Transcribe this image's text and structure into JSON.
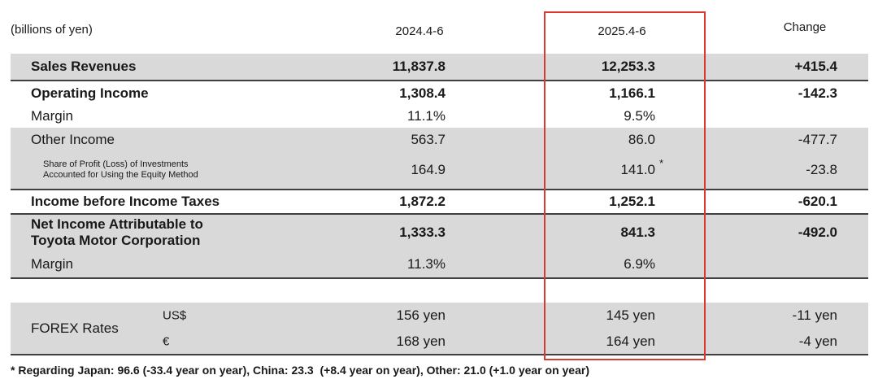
{
  "table": {
    "unit_label": "(billions of yen)",
    "columns": {
      "y2024": "2024.4-6",
      "y2025": "2025.4-6",
      "change": "Change"
    },
    "rows": {
      "sales_revenues": {
        "label": "Sales Revenues",
        "y2024": "11,837.8",
        "y2025": "12,253.3",
        "change": "+415.4"
      },
      "operating_income": {
        "label": "Operating Income",
        "y2024": "1,308.4",
        "y2025": "1,166.1",
        "change": "-142.3"
      },
      "operating_margin": {
        "label": "Margin",
        "y2024": "11.1%",
        "y2025": "9.5%",
        "change": ""
      },
      "other_income": {
        "label": "Other Income",
        "y2024": "563.7",
        "y2025": "86.0",
        "change": "-477.7"
      },
      "equity_method": {
        "label": "Share of Profit (Loss) of Investments\nAccounted for Using the Equity Method",
        "y2024": "164.9",
        "y2025": "141.0",
        "footnote_mark": "*",
        "change": "-23.8"
      },
      "income_before_taxes": {
        "label": "Income before Income Taxes",
        "y2024": "1,872.2",
        "y2025": "1,252.1",
        "change": "-620.1"
      },
      "net_income": {
        "label": "Net Income Attributable to\nToyota Motor Corporation",
        "y2024": "1,333.3",
        "y2025": "841.3",
        "change": "-492.0"
      },
      "net_margin": {
        "label": "Margin",
        "y2024": "11.3%",
        "y2025": "6.9%",
        "change": ""
      }
    },
    "forex": {
      "label": "FOREX Rates",
      "usd": {
        "currency": "US$",
        "y2024": "156 yen",
        "y2025": "145 yen",
        "change": "-11 yen"
      },
      "eur": {
        "currency": "€",
        "y2024": "168 yen",
        "y2025": "164 yen",
        "change": "-4 yen"
      }
    },
    "footnote": "* Regarding Japan: 96.6 (-33.4 year on year), China: 23.3  (+8.4 year on year), Other: 21.0 (+1.0 year on year)",
    "highlight_color": "#dc3832",
    "shade_color": "#d9d9d9"
  }
}
